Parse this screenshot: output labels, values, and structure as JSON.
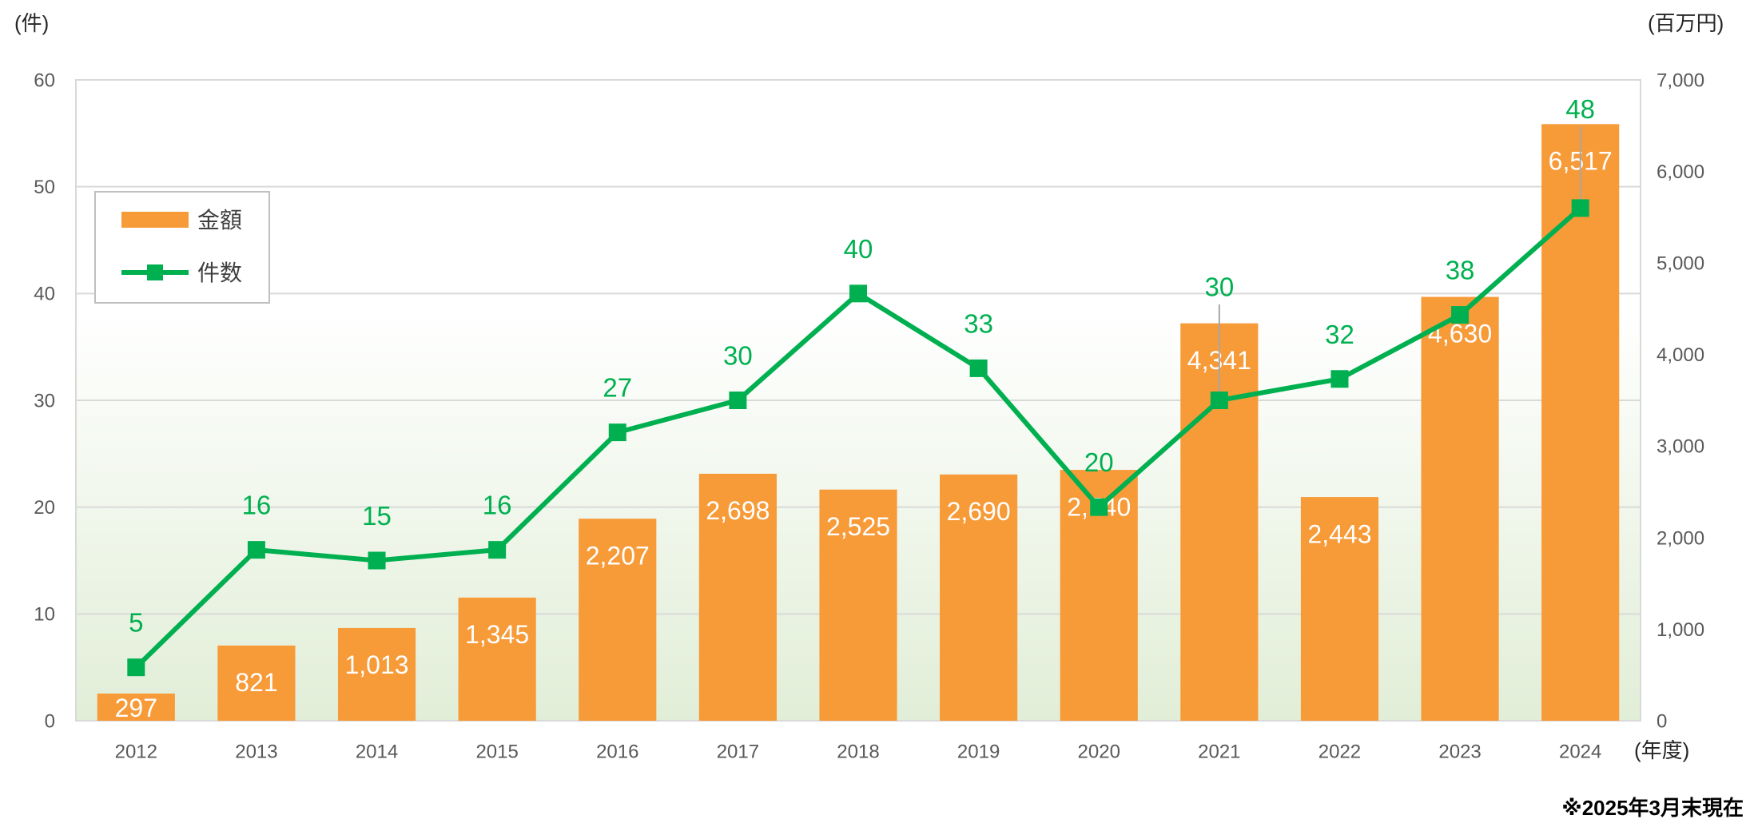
{
  "chart_data": {
    "type": "bar",
    "categories": [
      "2012",
      "2013",
      "2014",
      "2015",
      "2016",
      "2017",
      "2018",
      "2019",
      "2020",
      "2021",
      "2022",
      "2023",
      "2024"
    ],
    "series": [
      {
        "name": "金額",
        "type": "bar",
        "axis": "right",
        "values": [
          297,
          821,
          1013,
          1345,
          2207,
          2698,
          2525,
          2690,
          2740,
          4341,
          2443,
          4630,
          6517
        ],
        "color": "#F79A38"
      },
      {
        "name": "件数",
        "type": "line",
        "axis": "left",
        "values": [
          5,
          16,
          15,
          16,
          27,
          30,
          40,
          33,
          20,
          30,
          32,
          38,
          48
        ],
        "color": "#00B050"
      }
    ],
    "y_left": {
      "unit": "(件)",
      "ylim": [
        0,
        60
      ],
      "tick_labels": [
        "0",
        "10",
        "20",
        "30",
        "40",
        "50",
        "60"
      ]
    },
    "y_right": {
      "unit": "(百万円)",
      "ylim": [
        0,
        7000
      ],
      "tick_labels": [
        "0",
        "1,000",
        "2,000",
        "3,000",
        "4,000",
        "5,000",
        "6,000",
        "7,000"
      ]
    },
    "x_unit": "(年度)",
    "legend_position": "top-left",
    "grid": true,
    "note": "※2025年3月末現在"
  }
}
